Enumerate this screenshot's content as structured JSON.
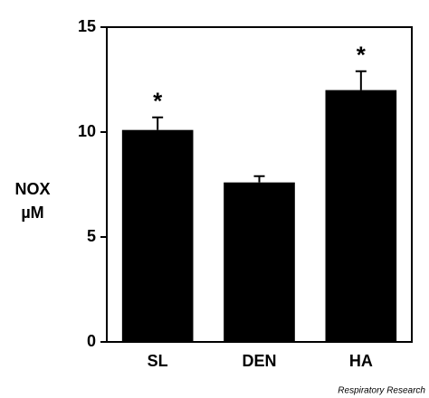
{
  "chart_data": {
    "type": "bar",
    "categories": [
      "SL",
      "DEN",
      "HA"
    ],
    "values": [
      10.1,
      7.6,
      12.0
    ],
    "errors": [
      0.6,
      0.3,
      0.9
    ],
    "significance": [
      "*",
      null,
      "*"
    ],
    "color": "#000000",
    "y_label": [
      "NOX",
      "µM"
    ],
    "ylim": [
      0,
      15
    ],
    "yticks": [
      0,
      5,
      10,
      15
    ],
    "grid": false,
    "source": "Respiratory Research"
  }
}
